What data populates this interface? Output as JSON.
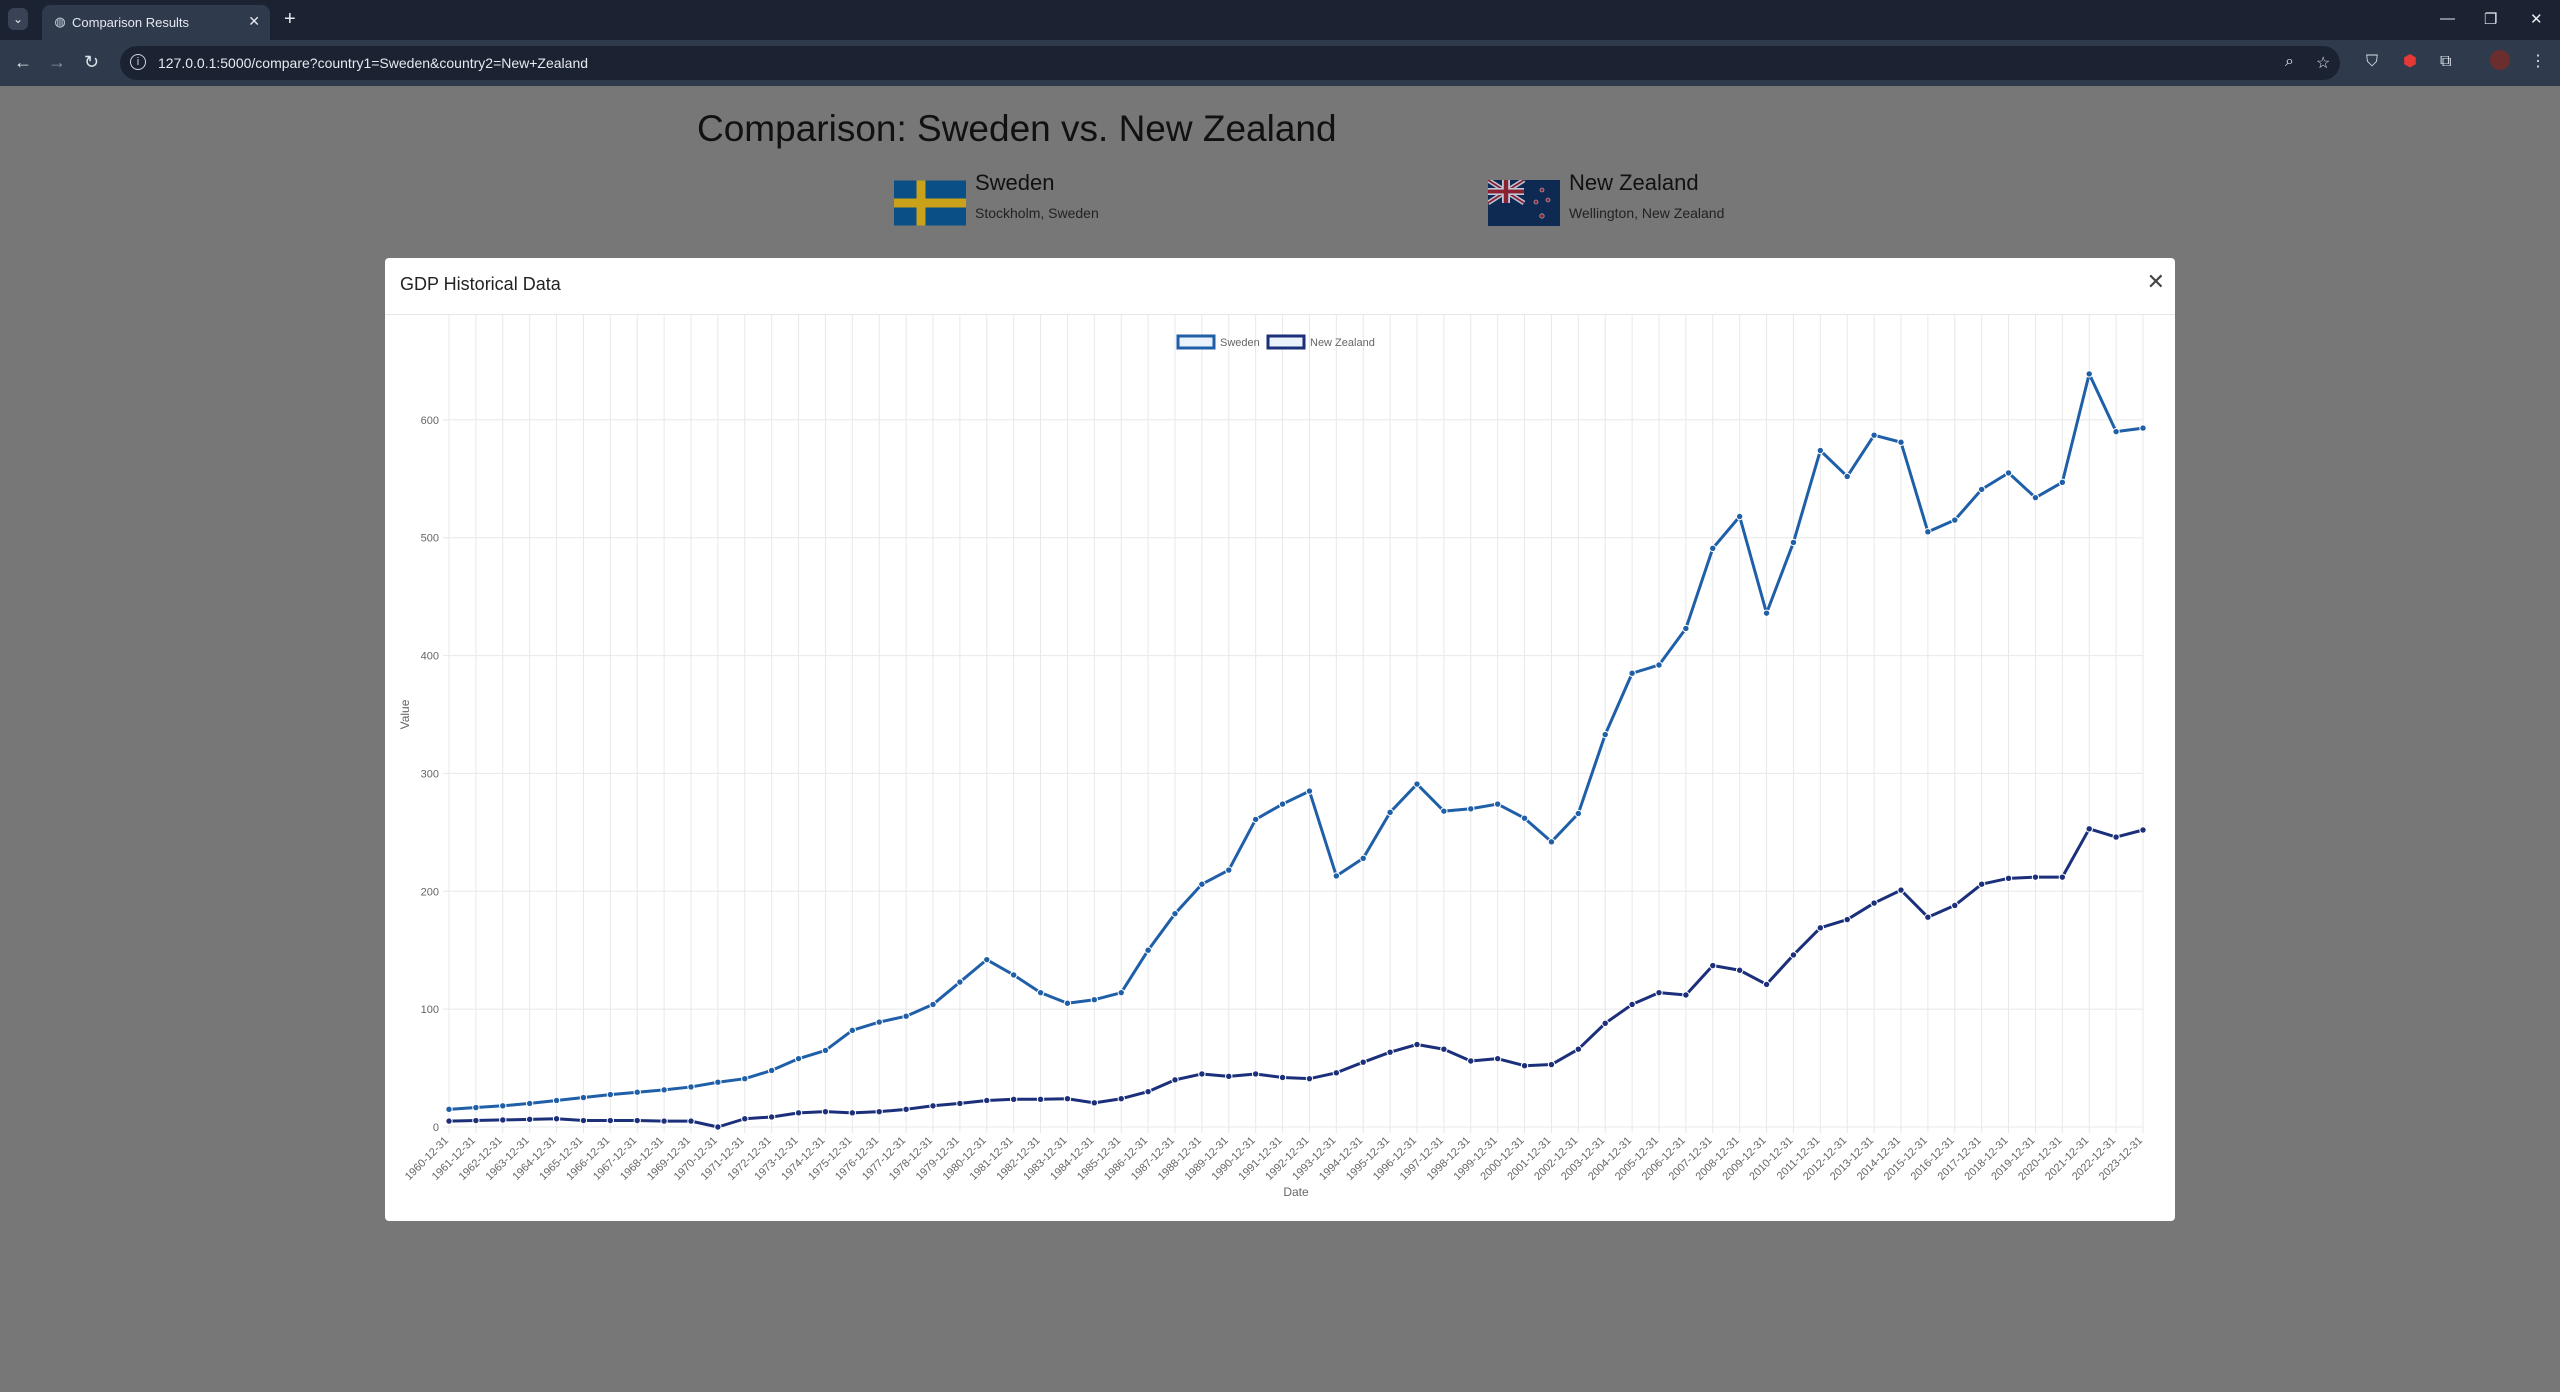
{
  "browser": {
    "tab_title": "Comparison Results",
    "url": "127.0.0.1:5000/compare?country1=Sweden&country2=New+Zealand"
  },
  "page": {
    "title": "Comparison: Sweden vs. New Zealand",
    "country1": {
      "name": "Sweden",
      "capital": "Stockholm, Sweden"
    },
    "country2": {
      "name": "New Zealand",
      "capital": "Wellington, New Zealand"
    }
  },
  "modal": {
    "title": "GDP Historical Data"
  },
  "colors": {
    "sweden": "#1f5fa8",
    "new_zealand": "#1b2f7a",
    "grid": "#e8e8e8",
    "axis_text": "#666666"
  },
  "chart_data": {
    "type": "line",
    "title": "",
    "xlabel": "Date",
    "ylabel": "Value",
    "ylim": [
      0,
      700
    ],
    "yticks": [
      0,
      100,
      200,
      300,
      400,
      500,
      600,
      700
    ],
    "legend_position": "top-center",
    "grid": true,
    "categories": [
      "1960-12-31",
      "1961-12-31",
      "1962-12-31",
      "1963-12-31",
      "1964-12-31",
      "1965-12-31",
      "1966-12-31",
      "1967-12-31",
      "1968-12-31",
      "1969-12-31",
      "1970-12-31",
      "1971-12-31",
      "1972-12-31",
      "1973-12-31",
      "1974-12-31",
      "1975-12-31",
      "1976-12-31",
      "1977-12-31",
      "1978-12-31",
      "1979-12-31",
      "1980-12-31",
      "1981-12-31",
      "1982-12-31",
      "1983-12-31",
      "1984-12-31",
      "1985-12-31",
      "1986-12-31",
      "1987-12-31",
      "1988-12-31",
      "1989-12-31",
      "1990-12-31",
      "1991-12-31",
      "1992-12-31",
      "1993-12-31",
      "1994-12-31",
      "1995-12-31",
      "1996-12-31",
      "1997-12-31",
      "1998-12-31",
      "1999-12-31",
      "2000-12-31",
      "2001-12-31",
      "2002-12-31",
      "2003-12-31",
      "2004-12-31",
      "2005-12-31",
      "2006-12-31",
      "2007-12-31",
      "2008-12-31",
      "2009-12-31",
      "2010-12-31",
      "2011-12-31",
      "2012-12-31",
      "2013-12-31",
      "2014-12-31",
      "2015-12-31",
      "2016-12-31",
      "2017-12-31",
      "2018-12-31",
      "2019-12-31",
      "2020-12-31",
      "2021-12-31",
      "2022-12-31",
      "2023-12-31"
    ],
    "series": [
      {
        "name": "Sweden",
        "values": [
          15,
          16.5,
          18,
          20,
          22.5,
          25,
          27.5,
          29.5,
          31.5,
          34,
          38,
          41,
          48,
          58,
          65,
          82,
          89,
          94,
          104,
          123,
          142,
          129,
          114,
          105,
          108,
          114,
          150,
          181,
          206,
          218,
          261,
          274,
          285,
          213,
          228,
          267,
          291,
          268,
          270,
          274,
          262,
          242,
          266,
          333,
          385,
          392,
          423,
          491,
          518,
          436,
          496,
          574,
          552,
          587,
          581,
          505,
          515,
          541,
          555,
          534,
          547,
          639,
          590,
          593
        ]
      },
      {
        "name": "New Zealand",
        "values": [
          5,
          5.5,
          6,
          6.5,
          7,
          5.5,
          5.5,
          5.5,
          5,
          5,
          0,
          7,
          8.5,
          12,
          13,
          12,
          13,
          15,
          18,
          20,
          22.5,
          23.5,
          23.5,
          24,
          20.5,
          24,
          30,
          40,
          45,
          43,
          45,
          42,
          41,
          46,
          55,
          63.5,
          70,
          66,
          56,
          58,
          52,
          53,
          66,
          88,
          104,
          114,
          112,
          137,
          133,
          121,
          146,
          169,
          176,
          190,
          201,
          178,
          188,
          206,
          211,
          212,
          212,
          253,
          246,
          252
        ]
      }
    ]
  }
}
